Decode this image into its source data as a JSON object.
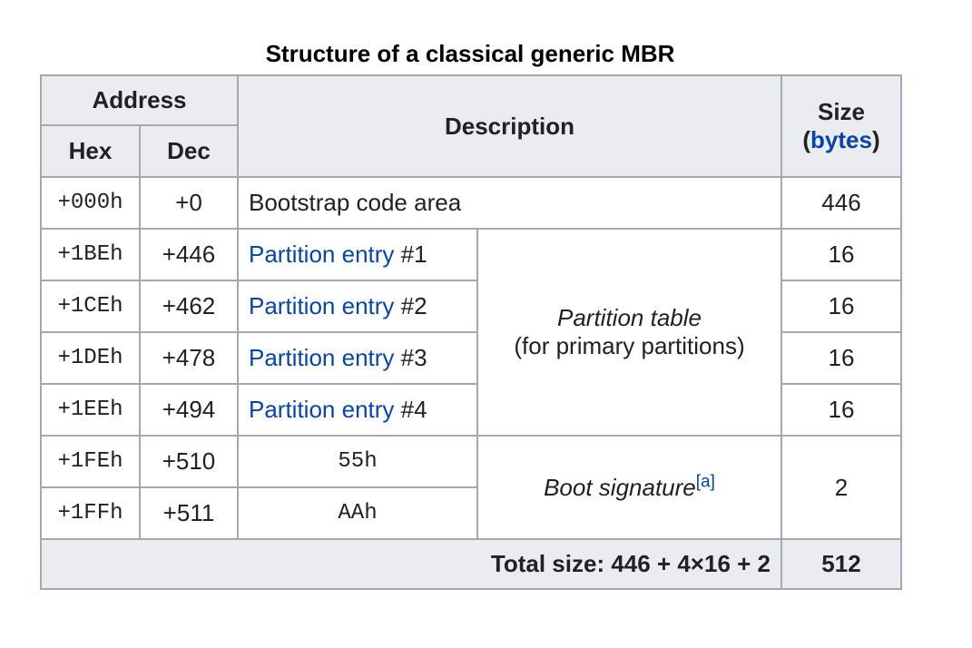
{
  "caption": "Structure of a classical generic MBR",
  "header": {
    "address": "Address",
    "hex": "Hex",
    "dec": "Dec",
    "description": "Description",
    "size_line1": "Size",
    "size_open": "(",
    "size_link": "bytes",
    "size_close": ")"
  },
  "rows": [
    {
      "hex": "+000h",
      "dec": "+0",
      "desc": "Bootstrap code area",
      "size": "446"
    },
    {
      "hex": "+1BEh",
      "dec": "+446",
      "link": "Partition entry",
      "num": " #1",
      "size": "16"
    },
    {
      "hex": "+1CEh",
      "dec": "+462",
      "link": "Partition entry",
      "num": " #2",
      "size": "16"
    },
    {
      "hex": "+1DEh",
      "dec": "+478",
      "link": "Partition entry",
      "num": " #3",
      "size": "16"
    },
    {
      "hex": "+1EEh",
      "dec": "+494",
      "link": "Partition entry",
      "num": " #4",
      "size": "16"
    },
    {
      "hex": "+1FEh",
      "dec": "+510",
      "value": "55h"
    },
    {
      "hex": "+1FFh",
      "dec": "+511",
      "value": "AAh"
    }
  ],
  "partition_table": {
    "title": "Partition table",
    "subtitle": "(for primary partitions)"
  },
  "boot_signature": {
    "label": "Boot signature",
    "ref": "[a]",
    "size": "2"
  },
  "total": {
    "label": "Total size: 446 + 4×16 + 2",
    "value": "512"
  }
}
